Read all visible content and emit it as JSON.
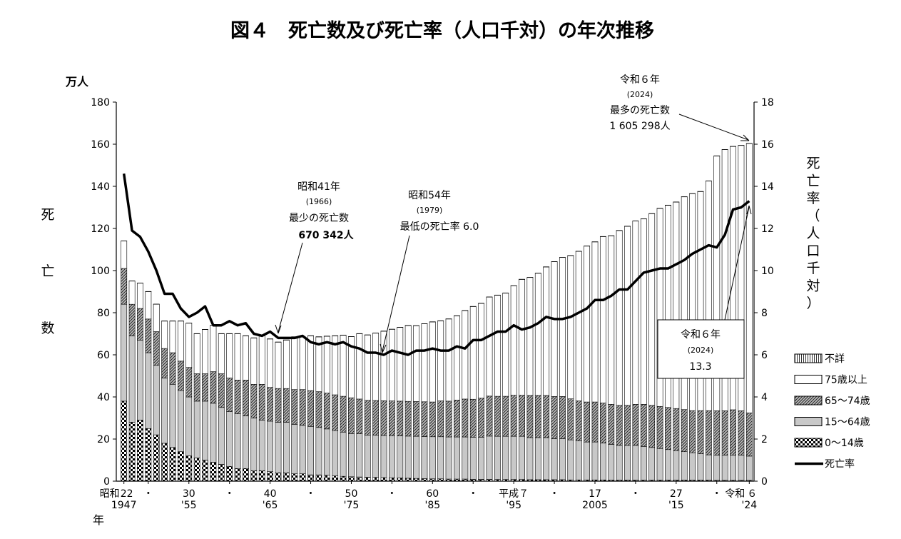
{
  "chart_data": {
    "type": "bar",
    "title": "図４　死亡数及び死亡率（人口千対）の年次推移",
    "y_left_unit": "万人",
    "y_left_label": [
      "死",
      "亡",
      "数"
    ],
    "y_right_label": [
      "死",
      "亡",
      "率",
      "（",
      "人",
      "口",
      "千",
      "対",
      "）"
    ],
    "x_axis_label": "年",
    "ylim_left": [
      0,
      180
    ],
    "ylim_right": [
      0,
      18
    ],
    "left_ticks": [
      "0",
      "20",
      "40",
      "60",
      "80",
      "100",
      "120",
      "140",
      "160",
      "180"
    ],
    "right_ticks": [
      "0",
      "2",
      "4",
      "6",
      "8",
      "10",
      "12",
      "14",
      "16",
      "18"
    ],
    "x_tick_labels": [
      {
        "year": 1947,
        "top": "昭和",
        "top2": "22",
        "bottom": "1947"
      },
      {
        "year": 1950,
        "top": "・",
        "bottom": ""
      },
      {
        "year": 1955,
        "top": "30",
        "bottom": "'55"
      },
      {
        "year": 1960,
        "top": "・",
        "bottom": ""
      },
      {
        "year": 1965,
        "top": "40",
        "bottom": "'65"
      },
      {
        "year": 1970,
        "top": "・",
        "bottom": ""
      },
      {
        "year": 1975,
        "top": "50",
        "bottom": "'75"
      },
      {
        "year": 1980,
        "top": "・",
        "bottom": ""
      },
      {
        "year": 1985,
        "top": "60",
        "bottom": "'85"
      },
      {
        "year": 1990,
        "top": "・",
        "bottom": ""
      },
      {
        "year": 1995,
        "top": "平成７",
        "bottom": "'95"
      },
      {
        "year": 2000,
        "top": "・",
        "bottom": ""
      },
      {
        "year": 2005,
        "top": "17",
        "bottom": "2005"
      },
      {
        "year": 2010,
        "top": "・",
        "bottom": ""
      },
      {
        "year": 2015,
        "top": "27",
        "bottom": "'15"
      },
      {
        "year": 2020,
        "top": "・",
        "bottom": ""
      },
      {
        "year": 2024,
        "top": "令和",
        "top2": "６",
        "bottom": "'24"
      }
    ],
    "series": [
      {
        "name": "0～14歳",
        "values": [
          38,
          28,
          29,
          25,
          22,
          18,
          16,
          14,
          12,
          11,
          10,
          9,
          8,
          7,
          6,
          6,
          5,
          5,
          4.5,
          4,
          4,
          3.5,
          3.5,
          3,
          3,
          2.8,
          2.5,
          2.3,
          2.1,
          2,
          1.9,
          1.8,
          1.7,
          1.6,
          1.5,
          1.4,
          1.3,
          1.2,
          1.1,
          1.1,
          1,
          1,
          1,
          0.9,
          0.9,
          0.9,
          0.8,
          0.8,
          0.8,
          0.8,
          0.7,
          0.7,
          0.7,
          0.7,
          0.7,
          0.6,
          0.6,
          0.6,
          0.6,
          0.6,
          0.5,
          0.5,
          0.5,
          0.5,
          0.5,
          0.5,
          0.5,
          0.5,
          0.5,
          0.5,
          0.5,
          0.5,
          0.5,
          0.4,
          0.4,
          0.4,
          0.4,
          0.4
        ]
      },
      {
        "name": "15～64歳",
        "values": [
          46,
          41,
          38,
          36,
          33,
          31,
          30,
          29,
          28,
          27,
          28,
          28,
          27,
          26,
          26,
          25,
          25,
          24,
          24,
          24,
          24,
          23.5,
          23,
          23,
          22.5,
          22,
          21.5,
          21,
          20.5,
          20.5,
          20,
          20,
          20,
          20,
          20,
          20,
          20,
          20,
          20,
          20,
          20,
          20,
          20,
          20,
          20,
          20.5,
          20.5,
          20.5,
          20.5,
          20.5,
          20,
          20,
          20,
          19.5,
          19.5,
          19,
          18.5,
          18,
          18,
          17.5,
          17,
          16.5,
          16.5,
          16.5,
          16,
          15.5,
          15,
          14.5,
          14,
          13.5,
          13,
          12.5,
          12,
          12,
          12,
          12,
          12,
          11.5
        ]
      },
      {
        "name": "65～74歳",
        "values": [
          17,
          15,
          15,
          16,
          16,
          14,
          15,
          14,
          14,
          13,
          13,
          15,
          16,
          16,
          16,
          17,
          16,
          17,
          16,
          16,
          16,
          16.5,
          17,
          17,
          17,
          17,
          17,
          17,
          17,
          16.5,
          16.5,
          16.5,
          16.5,
          16.5,
          16.5,
          16.5,
          16.5,
          16.5,
          16.5,
          17,
          17,
          17.5,
          18,
          18,
          18.5,
          19,
          19,
          19,
          19.5,
          19.5,
          20,
          20,
          20,
          20,
          20,
          19.5,
          19,
          19,
          19,
          19,
          19,
          19,
          19,
          19.5,
          20,
          20,
          20,
          20,
          20,
          20,
          20,
          20.5,
          21,
          21,
          21,
          21.5,
          21,
          20.5
        ]
      },
      {
        "name": "75歳以上",
        "values": [
          13,
          11,
          12,
          13,
          13,
          13,
          15,
          19,
          21,
          19,
          21,
          22,
          19,
          21,
          22,
          21,
          22,
          23,
          23,
          22,
          23,
          25,
          25,
          26,
          26,
          27,
          28,
          29,
          29,
          31,
          31,
          32,
          33,
          34,
          35,
          36,
          36,
          37,
          38,
          38,
          39,
          40,
          42,
          44,
          45,
          47,
          48,
          49,
          52,
          55,
          56,
          58,
          61,
          64,
          66,
          68,
          71,
          74,
          76,
          79,
          80,
          83,
          85,
          87,
          88,
          91,
          94,
          96,
          98,
          101,
          103,
          104,
          109,
          121,
          124,
          125,
          126,
          127.9
        ]
      },
      {
        "name": "不詳",
        "values": [
          0.1,
          0.1,
          0.1,
          0.1,
          0.1,
          0.1,
          0.1,
          0.1,
          0.1,
          0.1,
          0.1,
          0.1,
          0.1,
          0.1,
          0.1,
          0.1,
          0.1,
          0.1,
          0.1,
          0.1,
          0.1,
          0.1,
          0.1,
          0.1,
          0.1,
          0.1,
          0.1,
          0.1,
          0.1,
          0.1,
          0.1,
          0.1,
          0.1,
          0.1,
          0.1,
          0.1,
          0.1,
          0.1,
          0.1,
          0.1,
          0.1,
          0.1,
          0.1,
          0.1,
          0.1,
          0.1,
          0.1,
          0.1,
          0.1,
          0.1,
          0.1,
          0.1,
          0.1,
          0.1,
          0.1,
          0.1,
          0.1,
          0.1,
          0.1,
          0.1,
          0.1,
          0.1,
          0.1,
          0.1,
          0.1,
          0.1,
          0.1,
          0.1,
          0.1,
          0.1,
          0.1,
          0.1,
          0.1,
          0.1,
          0.1,
          0.1,
          0.1,
          0.1
        ]
      },
      {
        "name": "死亡率",
        "type": "line",
        "values": [
          14.6,
          11.9,
          11.6,
          10.9,
          10.0,
          8.9,
          8.9,
          8.2,
          7.8,
          8.0,
          8.3,
          7.4,
          7.4,
          7.6,
          7.4,
          7.5,
          7.0,
          6.9,
          7.1,
          6.8,
          6.8,
          6.8,
          6.9,
          6.6,
          6.5,
          6.6,
          6.5,
          6.6,
          6.4,
          6.3,
          6.1,
          6.1,
          6.0,
          6.2,
          6.1,
          6.0,
          6.2,
          6.2,
          6.3,
          6.2,
          6.2,
          6.4,
          6.3,
          6.7,
          6.7,
          6.9,
          7.1,
          7.1,
          7.4,
          7.2,
          7.3,
          7.5,
          7.8,
          7.7,
          7.7,
          7.8,
          8.0,
          8.2,
          8.6,
          8.6,
          8.8,
          9.1,
          9.1,
          9.5,
          9.9,
          10.0,
          10.1,
          10.1,
          10.3,
          10.5,
          10.8,
          11.0,
          11.2,
          11.1,
          11.7,
          12.9,
          13.0,
          13.3
        ]
      }
    ],
    "legend": [
      "不詳",
      "75歳以上",
      "65～74歳",
      "15～64歳",
      "0～14歳",
      "死亡率"
    ],
    "legend_position": "right",
    "annotations": {
      "min_deaths": {
        "era": "昭和41年",
        "year": "(1966)",
        "text": "最少の死亡数",
        "value": "670 342人"
      },
      "min_rate": {
        "era": "昭和54年",
        "year": "(1979)",
        "text": "最低の死亡率 6.0"
      },
      "max_deaths": {
        "era": "令和６年",
        "year": "(2024)",
        "text": "最多の死亡数",
        "value": "1 605 298人"
      },
      "rate_2024": {
        "era": "令和６年",
        "year": "(2024)",
        "value": "13.3"
      }
    }
  }
}
